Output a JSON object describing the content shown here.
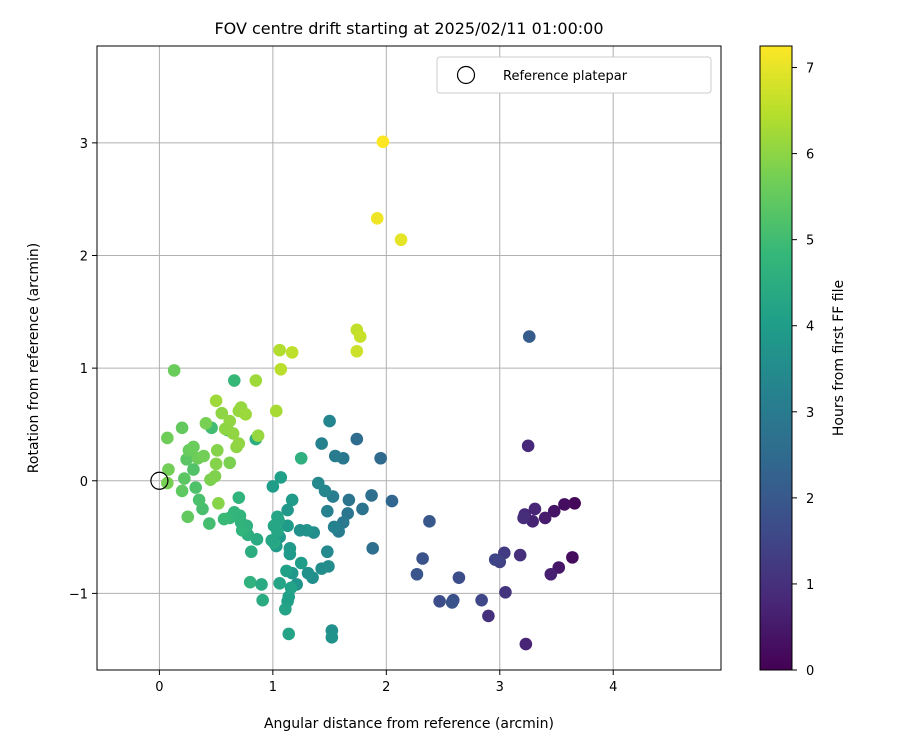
{
  "chart_data": {
    "type": "scatter",
    "title": "FOV centre drift starting at 2025/02/11 01:00:00",
    "xlabel": "Angular distance from reference (arcmin)",
    "ylabel": "Rotation from reference (arcmin)",
    "xlim": [
      -0.55,
      4.95
    ],
    "ylim": [
      -1.68,
      3.86
    ],
    "x_ticks": [
      0,
      1,
      2,
      3,
      4
    ],
    "y_ticks": [
      -1,
      0,
      1,
      2,
      3
    ],
    "grid": true,
    "legend": {
      "position": "top-right",
      "entries": [
        "Reference platepar"
      ]
    },
    "reference_point": {
      "x": 0,
      "y": 0
    },
    "colorbar": {
      "label": "Hours from first FF file",
      "min": 0,
      "max": 7.25,
      "ticks": [
        0,
        1,
        2,
        3,
        4,
        5,
        6,
        7
      ],
      "colormap": "viridis"
    },
    "series": [
      {
        "points": [
          [
            3.66,
            -0.2,
            0.12
          ],
          [
            3.57,
            -0.21,
            0.25
          ],
          [
            3.48,
            -0.27,
            0.4
          ],
          [
            3.4,
            -0.33,
            0.55
          ],
          [
            3.29,
            -0.36,
            0.7
          ],
          [
            3.22,
            -0.3,
            0.85
          ],
          [
            3.21,
            -0.33,
            0.95
          ],
          [
            3.31,
            -0.25,
            0.75
          ],
          [
            3.64,
            -0.68,
            0.2
          ],
          [
            3.52,
            -0.77,
            0.45
          ],
          [
            3.45,
            -0.83,
            0.65
          ],
          [
            3.23,
            -1.45,
            0.75
          ],
          [
            3.25,
            0.31,
            0.8
          ],
          [
            2.9,
            -1.2,
            1.0
          ],
          [
            3.05,
            -0.99,
            1.1
          ],
          [
            3.18,
            -0.66,
            1.0
          ],
          [
            3.04,
            -0.64,
            1.25
          ],
          [
            3.0,
            -0.72,
            1.4
          ],
          [
            2.96,
            -0.7,
            1.5
          ],
          [
            2.84,
            -1.06,
            1.55
          ],
          [
            2.64,
            -0.86,
            1.7
          ],
          [
            2.59,
            -1.06,
            1.75
          ],
          [
            2.58,
            -1.08,
            1.85
          ],
          [
            2.47,
            -1.07,
            1.7
          ],
          [
            2.32,
            -0.69,
            1.85
          ],
          [
            2.27,
            -0.83,
            1.9
          ],
          [
            2.38,
            -0.36,
            2.0
          ],
          [
            3.26,
            1.28,
            2.1
          ],
          [
            2.05,
            -0.18,
            2.4
          ],
          [
            1.95,
            0.2,
            2.5
          ],
          [
            1.88,
            -0.6,
            2.6
          ],
          [
            1.74,
            0.37,
            2.55
          ],
          [
            1.87,
            -0.13,
            2.65
          ],
          [
            1.79,
            -0.25,
            2.75
          ],
          [
            1.67,
            -0.17,
            2.8
          ],
          [
            1.62,
            0.2,
            2.9
          ],
          [
            1.66,
            -0.29,
            2.85
          ],
          [
            1.55,
            0.22,
            3.0
          ],
          [
            1.62,
            -0.37,
            2.95
          ],
          [
            1.58,
            -0.45,
            3.05
          ],
          [
            1.53,
            -0.14,
            3.1
          ],
          [
            1.48,
            -0.27,
            3.15
          ],
          [
            1.5,
            0.53,
            3.3
          ],
          [
            1.43,
            0.33,
            3.2
          ],
          [
            1.54,
            -0.41,
            3.2
          ],
          [
            1.46,
            -0.09,
            3.35
          ],
          [
            1.4,
            -0.02,
            3.4
          ],
          [
            1.48,
            -0.63,
            3.45
          ],
          [
            1.49,
            -0.76,
            3.5
          ],
          [
            1.43,
            -0.78,
            3.55
          ],
          [
            1.36,
            -0.46,
            3.55
          ],
          [
            1.35,
            -0.86,
            3.6
          ],
          [
            1.31,
            -0.82,
            3.65
          ],
          [
            1.3,
            -0.44,
            3.7
          ],
          [
            1.24,
            -0.44,
            3.65
          ],
          [
            1.52,
            -1.33,
            3.65
          ],
          [
            1.52,
            -1.39,
            3.7
          ],
          [
            1.21,
            -0.92,
            3.75
          ],
          [
            1.17,
            -0.82,
            3.8
          ],
          [
            1.13,
            -0.26,
            3.85
          ],
          [
            1.15,
            -0.6,
            3.9
          ],
          [
            1.15,
            -0.65,
            3.9
          ],
          [
            1.17,
            -0.17,
            3.95
          ],
          [
            1.13,
            -0.4,
            3.95
          ],
          [
            1.06,
            -0.5,
            3.9
          ],
          [
            1.03,
            -0.58,
            3.95
          ],
          [
            1.0,
            -0.05,
            4.0
          ],
          [
            1.07,
            0.03,
            4.05
          ],
          [
            1.25,
            -0.73,
            4.0
          ],
          [
            1.14,
            -1.03,
            4.05
          ],
          [
            1.13,
            -1.07,
            4.1
          ],
          [
            1.12,
            -0.8,
            4.1
          ],
          [
            1.16,
            -0.95,
            4.15
          ],
          [
            1.14,
            -1.36,
            4.2
          ],
          [
            1.11,
            -1.14,
            4.2
          ],
          [
            1.06,
            -0.91,
            4.25
          ],
          [
            1.04,
            -0.32,
            4.25
          ],
          [
            1.05,
            -0.35,
            4.25
          ],
          [
            1.01,
            -0.4,
            4.3
          ],
          [
            1.04,
            -0.45,
            4.3
          ],
          [
            1.01,
            -0.55,
            4.35
          ],
          [
            0.99,
            -0.53,
            4.3
          ],
          [
            0.9,
            -0.92,
            4.4
          ],
          [
            0.91,
            -1.06,
            4.45
          ],
          [
            0.86,
            -0.52,
            4.45
          ],
          [
            0.85,
            0.37,
            4.5
          ],
          [
            0.81,
            -0.63,
            4.5
          ],
          [
            0.78,
            -0.48,
            4.55
          ],
          [
            1.25,
            0.2,
            4.6
          ],
          [
            0.77,
            -0.4,
            4.6
          ],
          [
            0.8,
            -0.9,
            4.65
          ],
          [
            0.72,
            -0.37,
            4.65
          ],
          [
            0.73,
            -0.44,
            4.7
          ],
          [
            0.7,
            -0.15,
            4.7
          ],
          [
            0.71,
            -0.31,
            4.75
          ],
          [
            0.66,
            -0.28,
            4.75
          ],
          [
            0.62,
            -0.33,
            4.8
          ],
          [
            0.66,
            0.89,
            4.85
          ],
          [
            0.57,
            -0.34,
            4.9
          ],
          [
            0.6,
            0.45,
            4.95
          ],
          [
            0.46,
            0.47,
            5.0
          ],
          [
            0.44,
            -0.38,
            5.05
          ],
          [
            0.38,
            -0.25,
            5.1
          ],
          [
            0.35,
            -0.17,
            5.15
          ],
          [
            0.32,
            -0.06,
            5.2
          ],
          [
            0.3,
            0.1,
            5.25
          ],
          [
            0.28,
            0.25,
            5.3
          ],
          [
            0.24,
            0.19,
            5.35
          ],
          [
            0.22,
            0.02,
            5.4
          ],
          [
            0.2,
            -0.09,
            5.45
          ],
          [
            0.2,
            0.47,
            5.5
          ],
          [
            0.25,
            -0.32,
            5.5
          ],
          [
            0.26,
            0.27,
            5.55
          ],
          [
            0.13,
            0.98,
            5.6
          ],
          [
            0.07,
            0.38,
            5.65
          ],
          [
            0.08,
            0.1,
            5.7
          ],
          [
            0.07,
            -0.02,
            5.75
          ],
          [
            0.3,
            0.3,
            5.6
          ],
          [
            0.34,
            0.2,
            5.65
          ],
          [
            0.39,
            0.22,
            5.7
          ],
          [
            0.41,
            0.51,
            5.75
          ],
          [
            0.45,
            0.01,
            5.8
          ],
          [
            0.49,
            0.04,
            5.85
          ],
          [
            0.5,
            0.15,
            5.9
          ],
          [
            0.51,
            0.27,
            5.9
          ],
          [
            0.52,
            -0.2,
            5.95
          ],
          [
            0.55,
            0.6,
            6.0
          ],
          [
            0.58,
            0.46,
            6.0
          ],
          [
            0.62,
            0.53,
            6.05
          ],
          [
            0.65,
            0.42,
            6.05
          ],
          [
            0.7,
            0.62,
            6.1
          ],
          [
            0.72,
            0.65,
            6.1
          ],
          [
            0.76,
            0.59,
            6.15
          ],
          [
            0.62,
            0.16,
            5.8
          ],
          [
            0.68,
            0.3,
            6.0
          ],
          [
            0.7,
            0.33,
            6.05
          ],
          [
            0.87,
            0.4,
            6.1
          ],
          [
            0.85,
            0.89,
            6.2
          ],
          [
            0.5,
            0.71,
            6.2
          ],
          [
            1.03,
            0.62,
            6.3
          ],
          [
            1.06,
            1.16,
            6.4
          ],
          [
            1.07,
            0.99,
            6.5
          ],
          [
            1.17,
            1.14,
            6.55
          ],
          [
            1.74,
            1.34,
            6.6
          ],
          [
            1.77,
            1.28,
            6.65
          ],
          [
            1.74,
            1.15,
            6.7
          ],
          [
            2.13,
            2.14,
            7.0
          ],
          [
            1.92,
            2.33,
            7.1
          ],
          [
            1.97,
            3.01,
            7.25
          ]
        ]
      }
    ]
  }
}
